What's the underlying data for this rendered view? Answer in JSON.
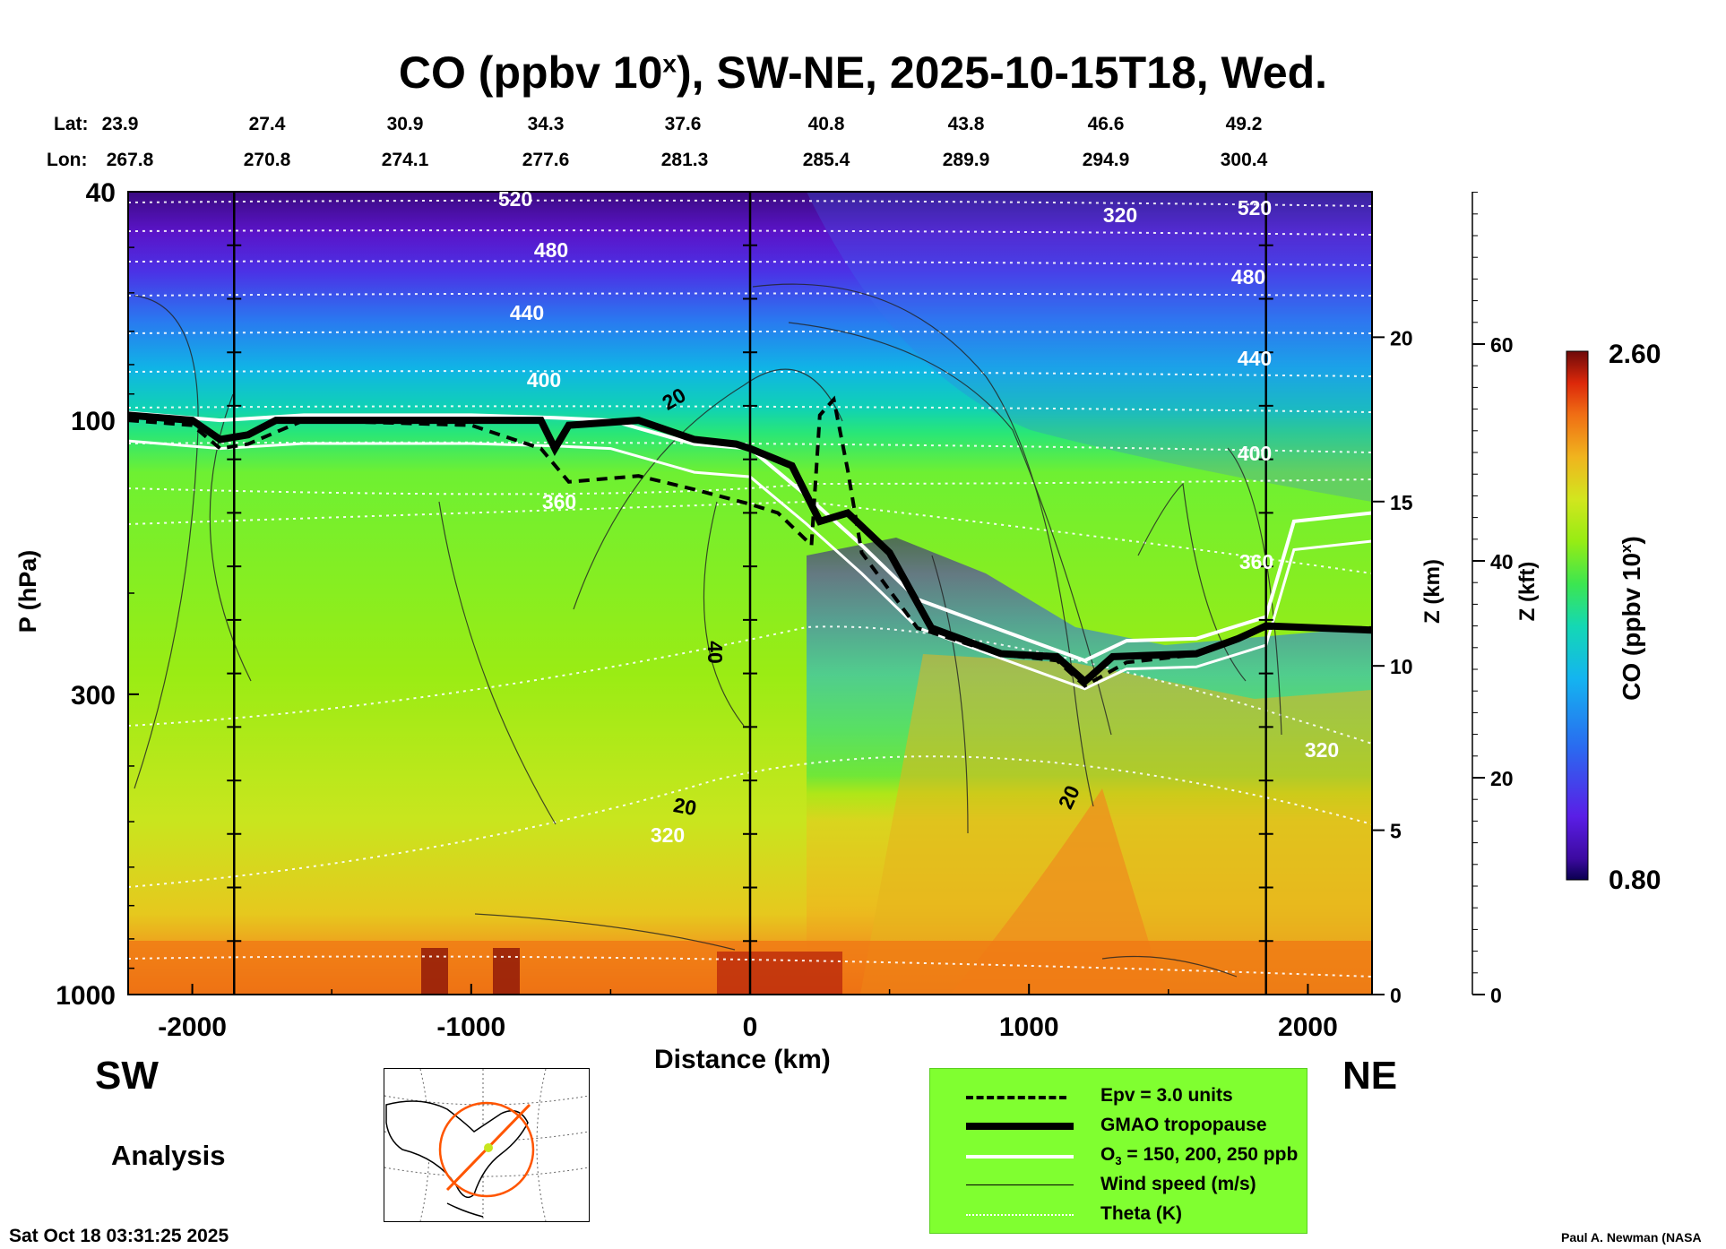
{
  "title": {
    "prefix": "CO (ppbv 10",
    "sup": "x",
    "suffix": "), SW-NE, 2025-10-15T18, Wed."
  },
  "lat_label": "Lat:",
  "lon_label": "Lon:",
  "lats": [
    "23.9",
    "27.4",
    "30.9",
    "34.3",
    "37.6",
    "40.8",
    "43.8",
    "46.6",
    "49.2"
  ],
  "lons": [
    "267.8",
    "270.8",
    "274.1",
    "277.6",
    "281.3",
    "285.4",
    "289.9",
    "294.9",
    "300.4"
  ],
  "left_end": "SW",
  "right_end": "NE",
  "analysis_label": "Analysis",
  "timestamp": "Sat Oct 18 03:31:25 2025",
  "credit": "Paul A. Newman (NASA",
  "legend": {
    "epv": "Epv = 3.0 units",
    "tropopause": "GMAO tropopause",
    "o3": "O",
    "o3_sub": "3",
    "o3_rest": " = 150, 200, 250 ppb",
    "wind": "Wind speed (m/s)",
    "theta": "Theta (K)"
  },
  "colors": {
    "legend_bg": "#80ff30",
    "map_path": "#ff5500",
    "map_center": "#c8e61e"
  },
  "colorbar": {
    "max_label": "2.60",
    "min_label": "0.80",
    "label": "CO (ppbv 10",
    "label_sup": "x",
    "label_end": ")"
  },
  "chart_data": {
    "type": "heatmap",
    "title": "CO (ppbv 10x), SW-NE, 2025-10-15T18, Wed.",
    "xlabel": "Distance (km)",
    "ylabel": "P (hPa)",
    "y2label": "Z (km)",
    "y3label": "Z (kft)",
    "xlim": [
      -2230,
      2230
    ],
    "ylim": [
      1000,
      40
    ],
    "yscale": "log",
    "x_ticks": [
      -2000,
      -1000,
      0,
      1000,
      2000
    ],
    "y_ticks": [
      40,
      100,
      300,
      1000
    ],
    "z_km_ticks": [
      0,
      5,
      10,
      15,
      20
    ],
    "z_kft_ticks": [
      0,
      20,
      40,
      60
    ],
    "colorbar_range": [
      0.8,
      2.6
    ],
    "vertical_markers_km": [
      -1850,
      0,
      1850
    ],
    "theta_labels": [
      "520",
      "480",
      "440",
      "400",
      "360",
      "320",
      "320",
      "520",
      "480",
      "440",
      "400",
      "360",
      "320"
    ],
    "wind_labels": [
      "20",
      "40",
      "20",
      "20"
    ],
    "tropopause_p": [
      [
        -2230,
        98
      ],
      [
        -2000,
        100
      ],
      [
        -1900,
        108
      ],
      [
        -1800,
        106
      ],
      [
        -1700,
        100
      ],
      [
        -1500,
        100
      ],
      [
        -1000,
        100
      ],
      [
        -750,
        100
      ],
      [
        -700,
        112
      ],
      [
        -650,
        102
      ],
      [
        -400,
        100
      ],
      [
        -200,
        108
      ],
      [
        -50,
        110
      ],
      [
        0,
        112
      ],
      [
        150,
        120
      ],
      [
        250,
        150
      ],
      [
        350,
        145
      ],
      [
        500,
        170
      ],
      [
        650,
        230
      ],
      [
        900,
        255
      ],
      [
        1100,
        258
      ],
      [
        1200,
        285
      ],
      [
        1300,
        258
      ],
      [
        1600,
        255
      ],
      [
        1750,
        240
      ],
      [
        1850,
        228
      ],
      [
        2230,
        232
      ]
    ],
    "epv_p": [
      [
        -2230,
        100
      ],
      [
        -2000,
        102
      ],
      [
        -1900,
        112
      ],
      [
        -1800,
        110
      ],
      [
        -1600,
        100
      ],
      [
        -1000,
        102
      ],
      [
        -750,
        112
      ],
      [
        -650,
        128
      ],
      [
        -400,
        125
      ],
      [
        -200,
        132
      ],
      [
        0,
        140
      ],
      [
        100,
        145
      ],
      [
        220,
        165
      ],
      [
        250,
        98
      ],
      [
        300,
        92
      ],
      [
        350,
        122
      ],
      [
        400,
        170
      ],
      [
        600,
        230
      ],
      [
        900,
        256
      ],
      [
        1100,
        262
      ],
      [
        1200,
        290
      ],
      [
        1350,
        264
      ],
      [
        1600,
        256
      ],
      [
        1850,
        230
      ],
      [
        2230,
        230
      ]
    ],
    "o3_p": [
      [
        -2230,
        97
      ],
      [
        -1900,
        100
      ],
      [
        -1600,
        98
      ],
      [
        -1000,
        98
      ],
      [
        -700,
        99
      ],
      [
        -500,
        100
      ],
      [
        -200,
        110
      ],
      [
        0,
        112
      ],
      [
        200,
        135
      ],
      [
        400,
        165
      ],
      [
        600,
        205
      ],
      [
        900,
        232
      ],
      [
        1200,
        262
      ],
      [
        1350,
        242
      ],
      [
        1600,
        240
      ],
      [
        1850,
        220
      ],
      [
        1950,
        150
      ],
      [
        2230,
        145
      ]
    ]
  }
}
